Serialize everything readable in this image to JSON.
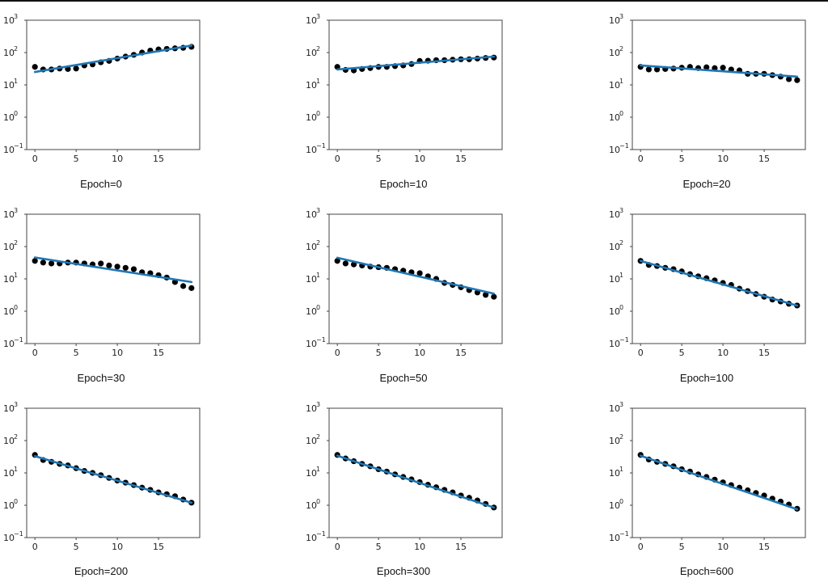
{
  "figure": {
    "colors": {
      "points": "#000000",
      "fit_line": "#1f77b4",
      "axes": "#444444"
    }
  },
  "chart_data": [
    {
      "type": "scatter",
      "title": "Epoch=0",
      "xlabel": "",
      "ylabel": "",
      "yscale": "log",
      "xlim": [
        -1,
        20
      ],
      "ylim": [
        0.1,
        1000
      ],
      "xticks": [
        0,
        5,
        10,
        15
      ],
      "yticks": [
        {
          "base": "10",
          "exp": "3"
        },
        {
          "base": "10",
          "exp": "2"
        },
        {
          "base": "10",
          "exp": "1"
        },
        {
          "base": "10",
          "exp": "0"
        },
        {
          "base": "10",
          "exp": "−1"
        }
      ],
      "x": [
        0,
        1,
        2,
        3,
        4,
        5,
        6,
        7,
        8,
        9,
        10,
        11,
        12,
        13,
        14,
        15,
        16,
        17,
        18,
        19
      ],
      "points": [
        36,
        30,
        30,
        32,
        31,
        32,
        40,
        43,
        50,
        55,
        65,
        75,
        85,
        100,
        115,
        125,
        130,
        135,
        140,
        150
      ],
      "fit_line": [
        25,
        165
      ]
    },
    {
      "type": "scatter",
      "title": "Epoch=10",
      "xlabel": "",
      "ylabel": "",
      "yscale": "log",
      "xlim": [
        -1,
        20
      ],
      "ylim": [
        0.1,
        1000
      ],
      "xticks": [
        0,
        5,
        10,
        15
      ],
      "yticks": [
        {
          "base": "10",
          "exp": "3"
        },
        {
          "base": "10",
          "exp": "2"
        },
        {
          "base": "10",
          "exp": "1"
        },
        {
          "base": "10",
          "exp": "0"
        },
        {
          "base": "10",
          "exp": "−1"
        }
      ],
      "x": [
        0,
        1,
        2,
        3,
        4,
        5,
        6,
        7,
        8,
        9,
        10,
        11,
        12,
        13,
        14,
        15,
        16,
        17,
        18,
        19
      ],
      "points": [
        36,
        29,
        28,
        31,
        33,
        36,
        36,
        38,
        40,
        44,
        55,
        56,
        58,
        58,
        60,
        62,
        62,
        65,
        68,
        70
      ],
      "fit_line": [
        30,
        75
      ]
    },
    {
      "type": "scatter",
      "title": "Epoch=20",
      "xlabel": "",
      "ylabel": "",
      "yscale": "log",
      "xlim": [
        -1,
        20
      ],
      "ylim": [
        0.1,
        1000
      ],
      "xticks": [
        0,
        5,
        10,
        15
      ],
      "yticks": [
        {
          "base": "10",
          "exp": "3"
        },
        {
          "base": "10",
          "exp": "2"
        },
        {
          "base": "10",
          "exp": "1"
        },
        {
          "base": "10",
          "exp": "0"
        },
        {
          "base": "10",
          "exp": "−1"
        }
      ],
      "x": [
        0,
        1,
        2,
        3,
        4,
        5,
        6,
        7,
        8,
        9,
        10,
        11,
        12,
        13,
        14,
        15,
        16,
        17,
        18,
        19
      ],
      "points": [
        36,
        30,
        30,
        31,
        32,
        34,
        36,
        33,
        35,
        33,
        34,
        30,
        28,
        22,
        22,
        22,
        20,
        18,
        15,
        14
      ],
      "fit_line": [
        40,
        18
      ]
    },
    {
      "type": "scatter",
      "title": "Epoch=30",
      "xlabel": "",
      "ylabel": "",
      "yscale": "log",
      "xlim": [
        -1,
        20
      ],
      "ylim": [
        0.1,
        1000
      ],
      "xticks": [
        0,
        5,
        10,
        15
      ],
      "yticks": [
        {
          "base": "10",
          "exp": "3"
        },
        {
          "base": "10",
          "exp": "2"
        },
        {
          "base": "10",
          "exp": "1"
        },
        {
          "base": "10",
          "exp": "0"
        },
        {
          "base": "10",
          "exp": "−1"
        }
      ],
      "x": [
        0,
        1,
        2,
        3,
        4,
        5,
        6,
        7,
        8,
        9,
        10,
        11,
        12,
        13,
        14,
        15,
        16,
        17,
        18,
        19
      ],
      "points": [
        36,
        32,
        30,
        30,
        32,
        32,
        30,
        28,
        30,
        26,
        24,
        22,
        20,
        16,
        15,
        13,
        11,
        8,
        6,
        5.2
      ],
      "fit_line": [
        46,
        8
      ]
    },
    {
      "type": "scatter",
      "title": "Epoch=50",
      "xlabel": "",
      "ylabel": "",
      "yscale": "log",
      "xlim": [
        -1,
        20
      ],
      "ylim": [
        0.1,
        1000
      ],
      "xticks": [
        0,
        5,
        10,
        15
      ],
      "yticks": [
        {
          "base": "10",
          "exp": "3"
        },
        {
          "base": "10",
          "exp": "2"
        },
        {
          "base": "10",
          "exp": "1"
        },
        {
          "base": "10",
          "exp": "0"
        },
        {
          "base": "10",
          "exp": "−1"
        }
      ],
      "x": [
        0,
        1,
        2,
        3,
        4,
        5,
        6,
        7,
        8,
        9,
        10,
        11,
        12,
        13,
        14,
        15,
        16,
        17,
        18,
        19
      ],
      "points": [
        36,
        30,
        28,
        26,
        24,
        23,
        22,
        20,
        18,
        16,
        15,
        12,
        10,
        7.5,
        6.5,
        5.5,
        4.5,
        3.8,
        3.2,
        2.8
      ],
      "fit_line": [
        45,
        3.5
      ]
    },
    {
      "type": "scatter",
      "title": "Epoch=100",
      "xlabel": "",
      "ylabel": "",
      "yscale": "log",
      "xlim": [
        -1,
        20
      ],
      "ylim": [
        0.1,
        1000
      ],
      "xticks": [
        0,
        5,
        10,
        15
      ],
      "yticks": [
        {
          "base": "10",
          "exp": "3"
        },
        {
          "base": "10",
          "exp": "2"
        },
        {
          "base": "10",
          "exp": "1"
        },
        {
          "base": "10",
          "exp": "0"
        },
        {
          "base": "10",
          "exp": "−1"
        }
      ],
      "x": [
        0,
        1,
        2,
        3,
        4,
        5,
        6,
        7,
        8,
        9,
        10,
        11,
        12,
        13,
        14,
        15,
        16,
        17,
        18,
        19
      ],
      "points": [
        36,
        27,
        25,
        22,
        20,
        17,
        14,
        12,
        10.5,
        9,
        7.5,
        6.5,
        5,
        4.2,
        3.4,
        2.8,
        2.3,
        2,
        1.7,
        1.5
      ],
      "fit_line": [
        36,
        1.5
      ]
    },
    {
      "type": "scatter",
      "title": "Epoch=200",
      "xlabel": "",
      "ylabel": "",
      "yscale": "log",
      "xlim": [
        -1,
        20
      ],
      "ylim": [
        0.1,
        1000
      ],
      "xticks": [
        0,
        5,
        10,
        15
      ],
      "yticks": [
        {
          "base": "10",
          "exp": "3"
        },
        {
          "base": "10",
          "exp": "2"
        },
        {
          "base": "10",
          "exp": "1"
        },
        {
          "base": "10",
          "exp": "0"
        },
        {
          "base": "10",
          "exp": "−1"
        }
      ],
      "x": [
        0,
        1,
        2,
        3,
        4,
        5,
        6,
        7,
        8,
        9,
        10,
        11,
        12,
        13,
        14,
        15,
        16,
        17,
        18,
        19
      ],
      "points": [
        36,
        25,
        22,
        19,
        17,
        14,
        11.5,
        10,
        8.5,
        7,
        5.8,
        5,
        4.2,
        3.5,
        3,
        2.5,
        2.2,
        1.9,
        1.5,
        1.2
      ],
      "fit_line": [
        33,
        1.2
      ]
    },
    {
      "type": "scatter",
      "title": "Epoch=300",
      "xlabel": "",
      "ylabel": "",
      "yscale": "log",
      "xlim": [
        -1,
        20
      ],
      "ylim": [
        0.1,
        1000
      ],
      "xticks": [
        0,
        5,
        10,
        15
      ],
      "yticks": [
        {
          "base": "10",
          "exp": "3"
        },
        {
          "base": "10",
          "exp": "2"
        },
        {
          "base": "10",
          "exp": "1"
        },
        {
          "base": "10",
          "exp": "0"
        },
        {
          "base": "10",
          "exp": "−1"
        }
      ],
      "x": [
        0,
        1,
        2,
        3,
        4,
        5,
        6,
        7,
        8,
        9,
        10,
        11,
        12,
        13,
        14,
        15,
        16,
        17,
        18,
        19
      ],
      "points": [
        36,
        28,
        23,
        19,
        16,
        13,
        11,
        9,
        7.5,
        6.3,
        5.2,
        4.3,
        3.6,
        3,
        2.5,
        2,
        1.7,
        1.4,
        1.1,
        0.85
      ],
      "fit_line": [
        34,
        0.85
      ]
    },
    {
      "type": "scatter",
      "title": "Epoch=600",
      "xlabel": "",
      "ylabel": "",
      "yscale": "log",
      "xlim": [
        -1,
        20
      ],
      "ylim": [
        0.1,
        1000
      ],
      "xticks": [
        0,
        5,
        10,
        15
      ],
      "yticks": [
        {
          "base": "10",
          "exp": "3"
        },
        {
          "base": "10",
          "exp": "2"
        },
        {
          "base": "10",
          "exp": "1"
        },
        {
          "base": "10",
          "exp": "0"
        },
        {
          "base": "10",
          "exp": "−1"
        }
      ],
      "x": [
        0,
        1,
        2,
        3,
        4,
        5,
        6,
        7,
        8,
        9,
        10,
        11,
        12,
        13,
        14,
        15,
        16,
        17,
        18,
        19
      ],
      "points": [
        36,
        26,
        22,
        19,
        16,
        13,
        11,
        9,
        7.5,
        6.2,
        5.1,
        4.2,
        3.5,
        2.9,
        2.4,
        2,
        1.6,
        1.3,
        1.05,
        0.78
      ],
      "fit_line": [
        34,
        0.75
      ]
    }
  ]
}
